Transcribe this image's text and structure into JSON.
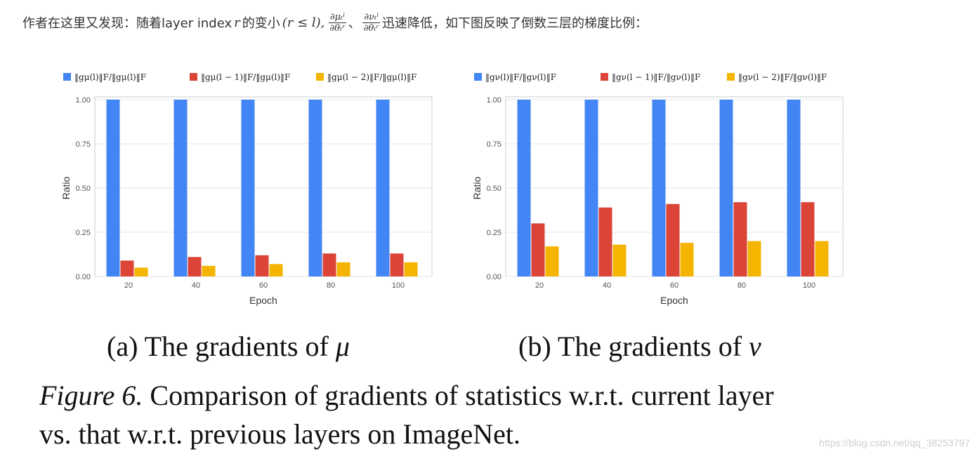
{
  "intro": {
    "text_a": "作者在这里又发现：随着layer index",
    "var_r": "r",
    "text_b": "的变小",
    "cond": "(r ≤ l),",
    "frac1_num": "∂μₜˡ",
    "frac1_den": "∂θₜʳ",
    "sep": "、",
    "frac2_num": "∂νₜˡ",
    "frac2_den": "∂θₜʳ",
    "text_c": "迅速降低，如下图反映了倒数三层的梯度比例："
  },
  "colors": {
    "blue": "#4285f4",
    "red": "#db4437",
    "yellow": "#f4b400"
  },
  "chart_data": [
    {
      "type": "bar",
      "categories": [
        "20",
        "40",
        "60",
        "80",
        "100"
      ],
      "xlabel": "Epoch",
      "ylabel": "Ratio",
      "ylim": [
        0,
        1
      ],
      "yticks": [
        "0.00",
        "0.25",
        "0.50",
        "0.75",
        "1.00"
      ],
      "legend_position": "top",
      "grid": true,
      "series": [
        {
          "name": "‖gμ(l)‖F/‖gμ(l)‖F",
          "color": "#4285f4",
          "values": [
            1.0,
            1.0,
            1.0,
            1.0,
            1.0
          ]
        },
        {
          "name": "‖gμ(l − 1)‖F/‖gμ(l)‖F",
          "color": "#db4437",
          "values": [
            0.09,
            0.11,
            0.12,
            0.13,
            0.13
          ]
        },
        {
          "name": "‖gμ(l − 2)‖F/‖gμ(l)‖F",
          "color": "#f4b400",
          "values": [
            0.05,
            0.06,
            0.07,
            0.08,
            0.08
          ]
        }
      ]
    },
    {
      "type": "bar",
      "categories": [
        "20",
        "40",
        "60",
        "80",
        "100"
      ],
      "xlabel": "Epoch",
      "ylabel": "Ratio",
      "ylim": [
        0,
        1
      ],
      "yticks": [
        "0.00",
        "0.25",
        "0.50",
        "0.75",
        "1.00"
      ],
      "legend_position": "top",
      "grid": true,
      "series": [
        {
          "name": "‖gν(l)‖F/‖gν(l)‖F",
          "color": "#4285f4",
          "values": [
            1.0,
            1.0,
            1.0,
            1.0,
            1.0
          ]
        },
        {
          "name": "‖gν(l − 1)‖F/‖gν(l)‖F",
          "color": "#db4437",
          "values": [
            0.3,
            0.39,
            0.41,
            0.42,
            0.42
          ]
        },
        {
          "name": "‖gν(l − 2)‖F/‖gν(l)‖F",
          "color": "#f4b400",
          "values": [
            0.17,
            0.18,
            0.19,
            0.2,
            0.2
          ]
        }
      ]
    }
  ],
  "subcaptions": {
    "a_label": "(a) The gradients of",
    "a_symbol": "μ",
    "b_label": "(b) The gradients of",
    "b_symbol": "ν"
  },
  "caption": {
    "label": "Figure 6.",
    "line1_text": "Comparison of gradients of statistics w.r.t. current layer",
    "line2_text": "vs. that w.r.t. previous layers on ImageNet."
  },
  "watermark": "https://blog.csdn.net/qq_38253797"
}
